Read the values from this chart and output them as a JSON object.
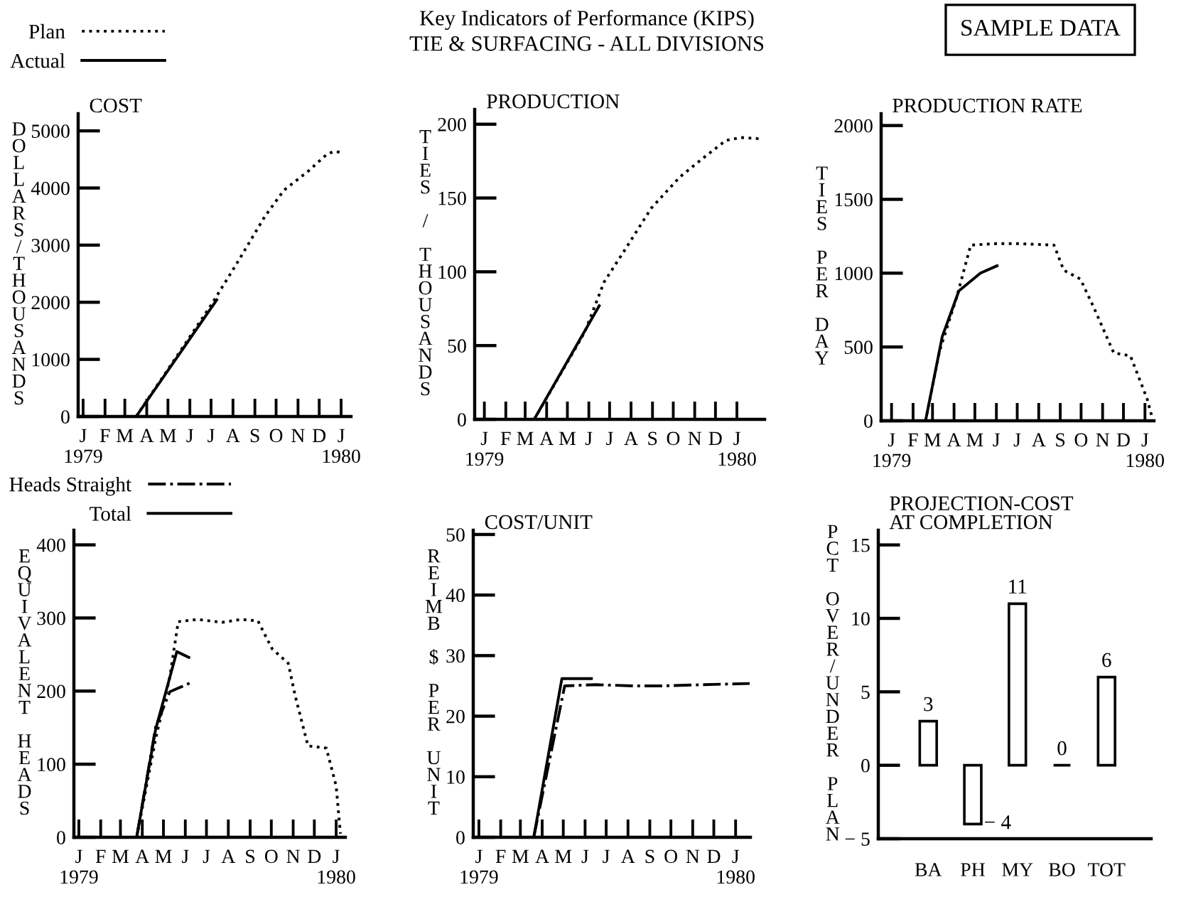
{
  "chart_data": [
    {
      "type": "line",
      "title": "COST",
      "ylabel": "DOLLARS/THOUSANDS",
      "legend": "top left",
      "annotations": [
        "Key Indicators of Performance (KIPS)",
        "TIE & SURFACING - ALL DIVISIONS",
        "SAMPLE DATA"
      ],
      "xlim": [
        "1978-12-25",
        "1980-01-15"
      ],
      "ylim": [
        0,
        5300
      ],
      "yticks": [
        0,
        1000,
        2000,
        3000,
        4000,
        5000
      ],
      "xticks": [
        {
          "value": "1979-01-01",
          "label": "J\n1979"
        },
        {
          "value": "1979-02-01",
          "label": "F"
        },
        {
          "value": "1979-03-01",
          "label": "M"
        },
        {
          "value": "1979-04-01",
          "label": "A"
        },
        {
          "value": "1979-05-01",
          "label": "M"
        },
        {
          "value": "1979-06-01",
          "label": "J"
        },
        {
          "value": "1979-07-01",
          "label": "J"
        },
        {
          "value": "1979-08-01",
          "label": "A"
        },
        {
          "value": "1979-09-01",
          "label": "S"
        },
        {
          "value": "1979-10-01",
          "label": "O"
        },
        {
          "value": "1979-11-01",
          "label": "N"
        },
        {
          "value": "1979-12-01",
          "label": "D"
        },
        {
          "value": "1980-01-01",
          "label": "J\n1980"
        }
      ],
      "series": [
        {
          "name": "Plan",
          "color": "#000000",
          "line_style": "dotted",
          "x": [
            "1979-03-17",
            "1979-05-16",
            "1979-07-01",
            "1979-08-06",
            "1979-09-15",
            "1979-10-12",
            "1979-11-15",
            "1979-12-11",
            "1979-12-21",
            "1980-01-04"
          ],
          "values": [
            0,
            1100,
            1950,
            2670,
            3500,
            3960,
            4290,
            4580,
            4640,
            4620
          ]
        },
        {
          "name": "Actual",
          "color": "#000000",
          "line_style": "solid",
          "x": [
            "1979-03-17",
            "1979-07-09"
          ],
          "values": [
            0,
            2040
          ]
        }
      ]
    },
    {
      "type": "line",
      "title": "PRODUCTION",
      "ylabel": "TIES / THOUSANDS",
      "xlim": [
        "1978-12-18",
        "1980-02-10"
      ],
      "ylim": [
        0,
        210
      ],
      "yticks": [
        0,
        50,
        100,
        150,
        200
      ],
      "xticks": [
        {
          "value": "1979-01-01",
          "label": "J\n1979"
        },
        {
          "value": "1979-02-01",
          "label": "F"
        },
        {
          "value": "1979-03-01",
          "label": "M"
        },
        {
          "value": "1979-04-01",
          "label": "A"
        },
        {
          "value": "1979-05-01",
          "label": "M"
        },
        {
          "value": "1979-06-01",
          "label": "J"
        },
        {
          "value": "1979-07-01",
          "label": "J"
        },
        {
          "value": "1979-08-01",
          "label": "A"
        },
        {
          "value": "1979-09-01",
          "label": "S"
        },
        {
          "value": "1979-10-01",
          "label": "O"
        },
        {
          "value": "1979-11-01",
          "label": "N"
        },
        {
          "value": "1979-12-01",
          "label": "D"
        },
        {
          "value": "1980-01-01",
          "label": "J\n1980"
        }
      ],
      "series": [
        {
          "color": "#000000",
          "line_style": "dotted",
          "x": [
            "1979-03-14",
            "1979-05-26",
            "1979-06-23",
            "1979-07-26",
            "1979-08-30",
            "1979-10-10",
            "1979-11-13",
            "1979-12-16",
            "1980-01-07",
            "1980-02-07"
          ],
          "values": [
            0,
            59,
            93,
            117,
            143,
            164,
            177,
            189,
            191,
            190
          ]
        },
        {
          "color": "#000000",
          "line_style": "solid",
          "x": [
            "1979-03-14",
            "1979-06-16"
          ],
          "values": [
            0,
            77
          ]
        }
      ]
    },
    {
      "type": "line",
      "title": "PRODUCTION RATE",
      "ylabel": "TIES PER DAY",
      "xlim": [
        "1978-12-17",
        "1980-01-14"
      ],
      "ylim": [
        0,
        2080
      ],
      "yticks": [
        0,
        500,
        1000,
        1500,
        2000
      ],
      "xticks": [
        {
          "value": "1979-01-01",
          "label": "J\n1979"
        },
        {
          "value": "1979-02-01",
          "label": "F"
        },
        {
          "value": "1979-03-01",
          "label": "M"
        },
        {
          "value": "1979-04-01",
          "label": "A"
        },
        {
          "value": "1979-05-01",
          "label": "M"
        },
        {
          "value": "1979-06-01",
          "label": "J"
        },
        {
          "value": "1979-07-01",
          "label": "J"
        },
        {
          "value": "1979-08-01",
          "label": "A"
        },
        {
          "value": "1979-09-01",
          "label": "S"
        },
        {
          "value": "1979-10-01",
          "label": "O"
        },
        {
          "value": "1979-11-01",
          "label": "N"
        },
        {
          "value": "1979-12-01",
          "label": "D"
        },
        {
          "value": "1980-01-01",
          "label": "J\n1980"
        }
      ],
      "series": [
        {
          "color": "#000000",
          "line_style": "dotted",
          "x": [
            "1979-02-19",
            "1979-03-11",
            "1979-04-05",
            "1979-04-25",
            "1979-06-01",
            "1979-07-02",
            "1979-08-23",
            "1979-09-06",
            "1979-09-30",
            "1979-10-20",
            "1979-11-17",
            "1979-12-11",
            "1980-01-04",
            "1980-01-12"
          ],
          "values": [
            0,
            470,
            840,
            1190,
            1200,
            1200,
            1190,
            1020,
            960,
            760,
            460,
            440,
            150,
            10
          ]
        },
        {
          "color": "#000000",
          "line_style": "solid",
          "x": [
            "1979-02-19",
            "1979-03-15",
            "1979-04-08",
            "1979-05-09",
            "1979-06-02"
          ],
          "values": [
            0,
            570,
            880,
            1000,
            1050
          ]
        }
      ]
    },
    {
      "type": "line",
      "ylabel": "EQUIVALENT HEADS",
      "legend": "top left",
      "xlim": [
        "1978-12-25",
        "1980-01-14"
      ],
      "ylim": [
        0,
        420
      ],
      "yticks": [
        0,
        100,
        200,
        300,
        400
      ],
      "xticks": [
        {
          "value": "1979-01-01",
          "label": "J\n1979"
        },
        {
          "value": "1979-02-01",
          "label": "F"
        },
        {
          "value": "1979-03-01",
          "label": "M"
        },
        {
          "value": "1979-04-01",
          "label": "A"
        },
        {
          "value": "1979-05-01",
          "label": "M"
        },
        {
          "value": "1979-06-01",
          "label": "J"
        },
        {
          "value": "1979-07-01",
          "label": "J"
        },
        {
          "value": "1979-08-01",
          "label": "A"
        },
        {
          "value": "1979-09-01",
          "label": "S"
        },
        {
          "value": "1979-10-01",
          "label": "O"
        },
        {
          "value": "1979-11-01",
          "label": "N"
        },
        {
          "value": "1979-12-01",
          "label": "D"
        },
        {
          "value": "1980-01-01",
          "label": "J\n1980"
        }
      ],
      "series": [
        {
          "color": "#000000",
          "line_style": "dotted",
          "x": [
            "1979-03-24",
            "1979-04-20",
            "1979-05-10",
            "1979-05-22",
            "1979-06-19",
            "1979-07-23",
            "1979-08-19",
            "1979-09-12",
            "1979-10-02",
            "1979-10-25",
            "1979-11-04",
            "1979-11-22",
            "1979-12-18",
            "1980-01-01",
            "1980-01-07"
          ],
          "values": [
            0,
            135,
            219,
            295,
            298,
            294,
            298,
            296,
            258,
            238,
            193,
            125,
            122,
            70,
            5
          ]
        },
        {
          "name": "Heads Straight",
          "color": "#000000",
          "line_style": "dashdot",
          "x": [
            "1979-03-24",
            "1979-04-20",
            "1979-05-10",
            "1979-06-10"
          ],
          "values": [
            0,
            151,
            199,
            212
          ]
        },
        {
          "name": "Total",
          "color": "#000000",
          "line_style": "solid",
          "x": [
            "1979-03-24",
            "1979-04-20",
            "1979-05-20",
            "1979-06-06"
          ],
          "values": [
            0,
            148,
            254,
            246
          ]
        }
      ]
    },
    {
      "type": "line",
      "title": "COST/UNIT",
      "ylabel": "REIMB $ PER UNIT",
      "xlim": [
        "1978-12-24",
        "1980-01-22"
      ],
      "ylim": [
        0,
        50.7
      ],
      "yticks": [
        0,
        10,
        20,
        30,
        40,
        50
      ],
      "xticks": [
        {
          "value": "1979-01-01",
          "label": "J\n1979"
        },
        {
          "value": "1979-02-01",
          "label": "F"
        },
        {
          "value": "1979-03-01",
          "label": "M"
        },
        {
          "value": "1979-04-01",
          "label": "A"
        },
        {
          "value": "1979-05-01",
          "label": "M"
        },
        {
          "value": "1979-06-01",
          "label": "J"
        },
        {
          "value": "1979-07-01",
          "label": "J"
        },
        {
          "value": "1979-08-01",
          "label": "A"
        },
        {
          "value": "1979-09-01",
          "label": "S"
        },
        {
          "value": "1979-10-01",
          "label": "O"
        },
        {
          "value": "1979-11-01",
          "label": "N"
        },
        {
          "value": "1979-12-01",
          "label": "D"
        },
        {
          "value": "1980-01-01",
          "label": "J\n1980"
        }
      ],
      "series": [
        {
          "color": "#000000",
          "line_style": "dashdot",
          "x": [
            "1979-03-20",
            "1979-05-03",
            "1979-06-16",
            "1979-08-09",
            "1979-09-19",
            "1979-11-18",
            "1980-01-21"
          ],
          "values": [
            0,
            25,
            25.2,
            25,
            25,
            25.2,
            25.4
          ]
        },
        {
          "color": "#000000",
          "line_style": "solid",
          "x": [
            "1979-03-20",
            "1979-04-29",
            "1979-06-10"
          ],
          "values": [
            0,
            26.2,
            26.2
          ]
        }
      ]
    },
    {
      "type": "bar",
      "title": "PROJECTION-COST\nAT COMPLETION",
      "ylabel": "PCT OVER/UNDER PLAN",
      "categories": [
        "BA",
        "PH",
        "MY",
        "BO",
        "TOT"
      ],
      "ylim": [
        -5,
        16
      ],
      "yticks": [
        15,
        10,
        5,
        0,
        {
          "value": -5,
          "label": "− 5"
        }
      ],
      "series": [
        {
          "color": "#000000",
          "values": [
            3,
            -4,
            11,
            0,
            6
          ],
          "value_labels": [
            "3",
            "− 4",
            "11",
            "0",
            "6"
          ]
        }
      ]
    }
  ]
}
